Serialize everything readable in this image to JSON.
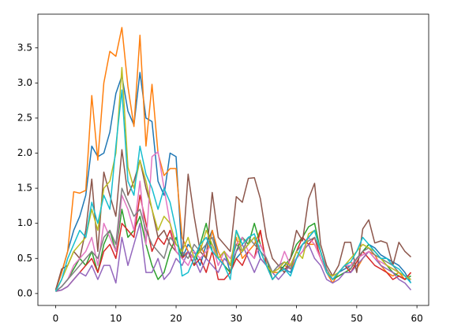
{
  "chart_data": {
    "type": "line",
    "x": [
      0,
      1,
      2,
      3,
      4,
      5,
      6,
      7,
      8,
      9,
      10,
      11,
      12,
      13,
      14,
      15,
      16,
      17,
      18,
      19,
      20,
      21,
      22,
      23,
      24,
      25,
      26,
      27,
      28,
      29,
      30,
      31,
      32,
      33,
      34,
      35,
      36,
      37,
      38,
      39,
      40,
      41,
      42,
      43,
      44,
      45,
      46,
      47,
      48,
      49,
      50,
      51,
      52,
      53,
      54,
      55,
      56,
      57,
      58,
      59
    ],
    "xlim": [
      -2.95,
      61.95
    ],
    "xticks": [
      0,
      10,
      20,
      30,
      40,
      50,
      60
    ],
    "ylim": [
      -0.17,
      3.98
    ],
    "yticks": [
      {
        "value": 0,
        "label": "0.0"
      },
      0.5,
      {
        "value": 1,
        "label": "1.0"
      },
      1.5,
      {
        "value": 2,
        "label": "2.0"
      },
      2.5,
      {
        "value": 3,
        "label": "3.0"
      },
      3.5
    ],
    "grid": false,
    "series": [
      {
        "color": "#1f77b4",
        "values": [
          0.05,
          0.3,
          0.6,
          0.9,
          1.1,
          1.4,
          2.1,
          1.95,
          2.0,
          2.3,
          2.85,
          3.1,
          2.6,
          2.4,
          3.15,
          2.5,
          2.45,
          1.6,
          1.4,
          2.0,
          1.95,
          0.5,
          0.7,
          0.6,
          0.4,
          0.7,
          0.9,
          0.5,
          0.6,
          0.3,
          0.5,
          0.6,
          0.7,
          0.8,
          0.5,
          0.4,
          0.3,
          0.4,
          0.35,
          0.3,
          0.5,
          0.7,
          0.8,
          0.9,
          0.6,
          0.3,
          0.2,
          0.3,
          0.35,
          0.4,
          0.5,
          0.6,
          0.7,
          0.65,
          0.55,
          0.5,
          0.45,
          0.4,
          0.3,
          0.15
        ]
      },
      {
        "color": "#ff7f0e",
        "values": [
          0.05,
          0.3,
          0.6,
          1.45,
          1.43,
          1.47,
          2.82,
          1.9,
          3.0,
          3.45,
          3.38,
          3.79,
          2.95,
          2.38,
          3.68,
          2.1,
          2.98,
          2.0,
          1.68,
          1.78,
          1.78,
          0.8,
          0.6,
          0.5,
          0.7,
          0.5,
          0.9,
          0.6,
          0.4,
          0.3,
          0.8,
          0.5,
          0.6,
          0.7,
          0.9,
          0.4,
          0.3,
          0.3,
          0.4,
          0.35,
          0.5,
          0.6,
          0.7,
          0.7,
          0.5,
          0.3,
          0.15,
          0.3,
          0.4,
          0.45,
          0.35,
          0.5,
          0.6,
          0.55,
          0.4,
          0.3,
          0.25,
          0.3,
          0.2,
          0.3
        ]
      },
      {
        "color": "#2ca02c",
        "values": [
          0.03,
          0.1,
          0.2,
          0.35,
          0.5,
          0.4,
          0.6,
          0.3,
          0.7,
          0.9,
          0.6,
          1.2,
          0.8,
          0.9,
          1.1,
          0.7,
          0.4,
          0.2,
          0.3,
          0.6,
          0.8,
          0.5,
          0.6,
          0.4,
          0.7,
          1.0,
          0.6,
          0.5,
          0.4,
          0.3,
          0.6,
          0.8,
          0.7,
          1.0,
          0.7,
          0.5,
          0.2,
          0.3,
          0.4,
          0.5,
          0.7,
          0.8,
          0.95,
          1.0,
          0.6,
          0.3,
          0.2,
          0.25,
          0.3,
          0.35,
          0.5,
          0.6,
          0.7,
          0.6,
          0.5,
          0.4,
          0.3,
          0.25,
          0.2,
          0.25
        ]
      },
      {
        "color": "#d62728",
        "values": [
          0.03,
          0.05,
          0.1,
          0.2,
          0.3,
          0.4,
          0.5,
          0.3,
          0.6,
          0.7,
          0.5,
          1.0,
          0.9,
          0.8,
          1.4,
          1.0,
          0.6,
          0.8,
          0.7,
          0.9,
          0.6,
          0.5,
          0.6,
          0.4,
          0.5,
          0.3,
          0.6,
          0.2,
          0.2,
          0.3,
          0.5,
          0.4,
          0.6,
          0.5,
          0.9,
          0.4,
          0.2,
          0.3,
          0.35,
          0.4,
          0.6,
          0.8,
          0.7,
          0.8,
          0.5,
          0.3,
          0.2,
          0.3,
          0.4,
          0.3,
          0.45,
          0.6,
          0.5,
          0.4,
          0.35,
          0.3,
          0.2,
          0.25,
          0.2,
          0.3
        ]
      },
      {
        "color": "#9467bd",
        "values": [
          0.03,
          0.05,
          0.1,
          0.2,
          0.3,
          0.25,
          0.4,
          0.2,
          0.4,
          0.4,
          0.15,
          0.8,
          0.4,
          0.7,
          1.0,
          0.3,
          0.3,
          0.5,
          0.2,
          0.3,
          0.5,
          0.4,
          0.6,
          0.5,
          0.3,
          0.5,
          0.4,
          0.3,
          0.5,
          0.4,
          0.6,
          0.7,
          0.5,
          0.3,
          0.5,
          0.4,
          0.3,
          0.2,
          0.3,
          0.4,
          0.5,
          0.6,
          0.7,
          0.5,
          0.4,
          0.2,
          0.15,
          0.2,
          0.3,
          0.3,
          0.4,
          0.5,
          0.6,
          0.5,
          0.4,
          0.35,
          0.3,
          0.2,
          0.15,
          0.05
        ]
      },
      {
        "color": "#8c564b",
        "values": [
          0.05,
          0.35,
          0.4,
          0.6,
          0.5,
          0.9,
          1.63,
          0.6,
          1.73,
          1.4,
          1.1,
          2.05,
          1.4,
          1.6,
          1.9,
          1.5,
          1.2,
          0.8,
          0.9,
          0.7,
          0.6,
          0.5,
          1.7,
          1.1,
          0.6,
          0.5,
          1.44,
          0.8,
          0.7,
          0.6,
          1.38,
          1.3,
          1.64,
          1.65,
          1.35,
          0.8,
          0.5,
          0.4,
          0.3,
          0.5,
          0.9,
          0.75,
          1.35,
          1.57,
          0.7,
          0.4,
          0.25,
          0.4,
          0.73,
          0.73,
          0.3,
          0.92,
          1.05,
          0.72,
          0.75,
          0.72,
          0.4,
          0.73,
          0.6,
          0.52
        ]
      },
      {
        "color": "#e377c2",
        "values": [
          0.03,
          0.1,
          0.2,
          0.4,
          0.5,
          0.6,
          0.8,
          0.4,
          1.0,
          0.8,
          0.6,
          1.4,
          1.2,
          0.9,
          1.6,
          0.7,
          1.95,
          2.02,
          1.5,
          1.0,
          0.6,
          0.5,
          0.4,
          0.6,
          0.5,
          0.6,
          0.7,
          0.4,
          0.6,
          0.5,
          0.7,
          0.8,
          0.6,
          0.5,
          0.7,
          0.5,
          0.3,
          0.35,
          0.6,
          0.4,
          0.5,
          0.6,
          0.8,
          0.7,
          0.5,
          0.3,
          0.2,
          0.3,
          0.4,
          0.4,
          0.5,
          0.55,
          0.6,
          0.5,
          0.45,
          0.4,
          0.35,
          0.3,
          0.25,
          0.2
        ]
      },
      {
        "color": "#7f7f7f",
        "values": [
          0.03,
          0.1,
          0.2,
          0.3,
          0.4,
          0.5,
          0.6,
          0.5,
          0.8,
          0.9,
          0.7,
          1.5,
          1.3,
          1.1,
          1.2,
          0.9,
          0.7,
          0.6,
          0.5,
          0.8,
          0.7,
          0.6,
          0.5,
          0.7,
          0.6,
          0.7,
          0.8,
          0.5,
          0.6,
          0.4,
          0.7,
          0.6,
          0.8,
          0.7,
          0.6,
          0.5,
          0.3,
          0.4,
          0.45,
          0.35,
          0.6,
          0.7,
          0.75,
          0.8,
          0.6,
          0.35,
          0.2,
          0.3,
          0.4,
          0.35,
          0.5,
          0.6,
          0.65,
          0.55,
          0.5,
          0.45,
          0.4,
          0.3,
          0.25,
          0.2
        ]
      },
      {
        "color": "#bcbd22",
        "values": [
          0.03,
          0.2,
          0.4,
          0.6,
          0.7,
          0.8,
          1.2,
          0.9,
          1.5,
          1.6,
          2.0,
          3.22,
          1.8,
          1.5,
          1.9,
          1.6,
          1.2,
          0.9,
          1.1,
          1.0,
          0.7,
          0.6,
          0.8,
          0.5,
          0.6,
          0.9,
          0.7,
          0.5,
          0.6,
          0.4,
          0.9,
          0.6,
          0.7,
          0.8,
          0.6,
          0.4,
          0.3,
          0.35,
          0.45,
          0.4,
          0.6,
          0.5,
          0.85,
          0.9,
          0.6,
          0.3,
          0.25,
          0.3,
          0.4,
          0.5,
          0.6,
          0.7,
          0.65,
          0.6,
          0.5,
          0.4,
          0.35,
          0.3,
          0.25,
          0.2
        ]
      },
      {
        "color": "#17becf",
        "values": [
          0.03,
          0.2,
          0.5,
          0.7,
          0.9,
          0.8,
          1.3,
          1.0,
          1.4,
          1.2,
          2.1,
          2.9,
          1.6,
          1.4,
          2.1,
          1.7,
          1.5,
          1.2,
          1.5,
          1.3,
          0.9,
          0.25,
          0.3,
          0.5,
          0.7,
          0.8,
          0.6,
          0.5,
          0.4,
          0.2,
          0.9,
          0.7,
          0.8,
          0.85,
          0.6,
          0.4,
          0.2,
          0.3,
          0.35,
          0.25,
          0.5,
          0.7,
          0.8,
          0.9,
          0.6,
          0.3,
          0.2,
          0.3,
          0.4,
          0.45,
          0.6,
          0.8,
          0.7,
          0.6,
          0.5,
          0.5,
          0.4,
          0.35,
          0.25,
          0.15
        ]
      }
    ]
  }
}
